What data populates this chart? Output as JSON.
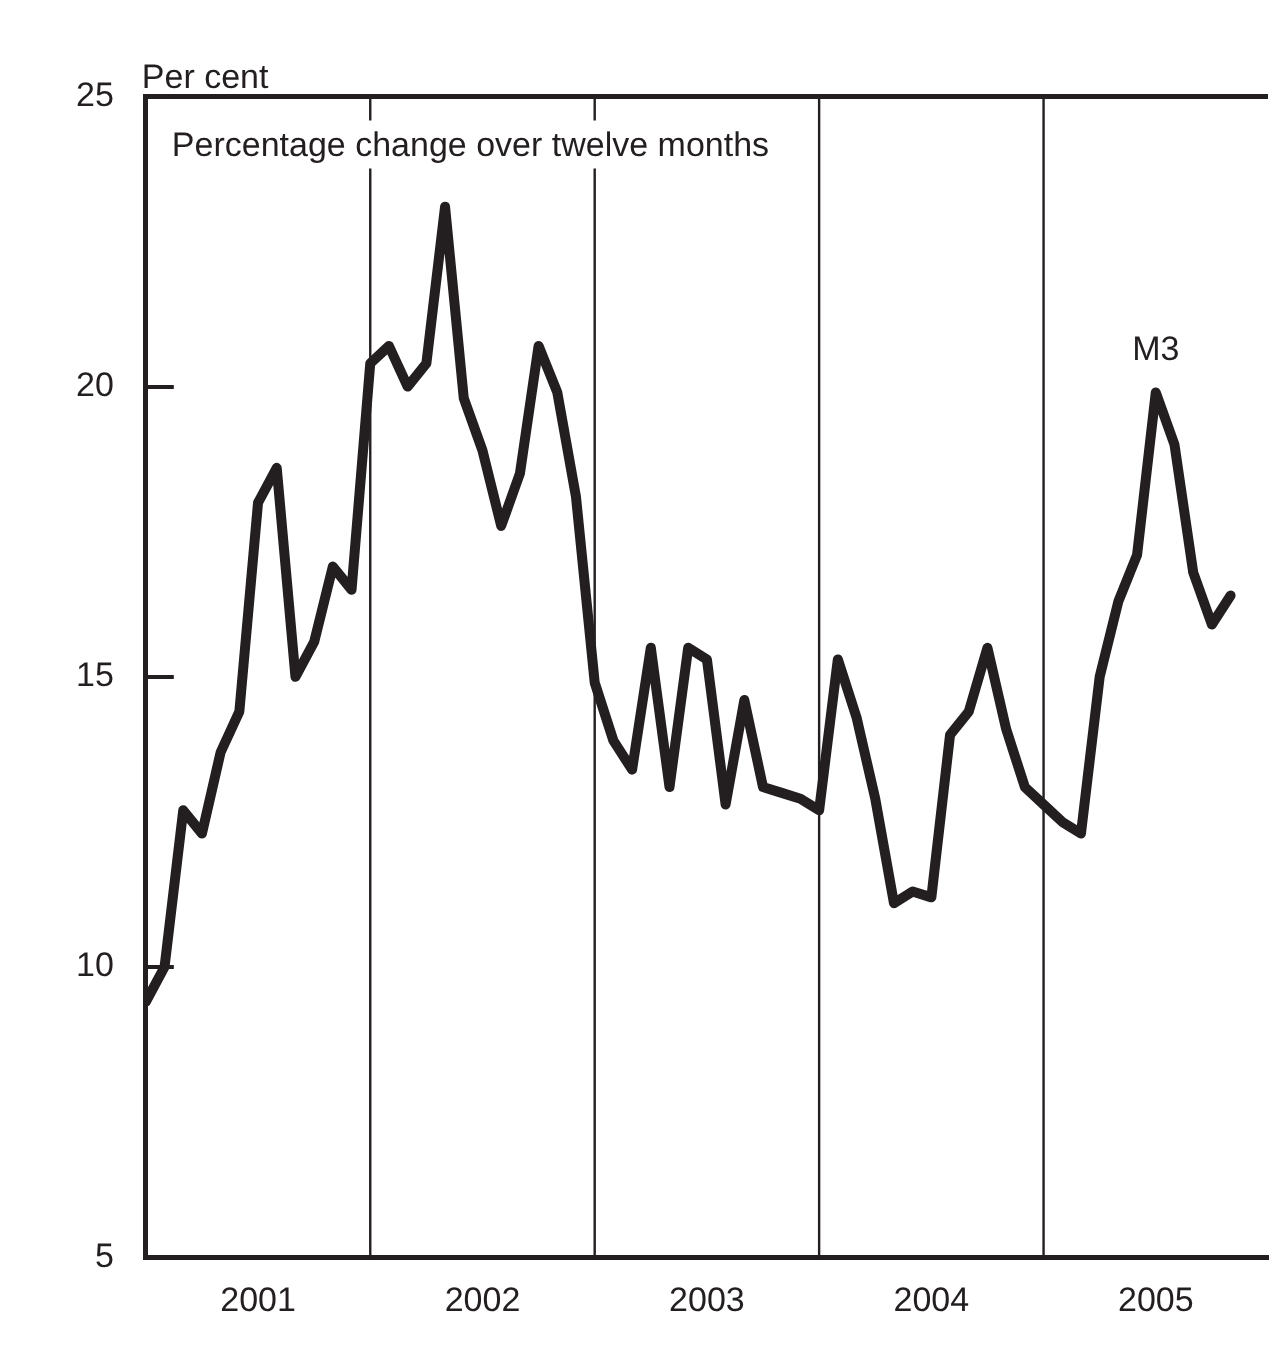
{
  "chart_data": {
    "type": "line",
    "title": "Percentage change over twelve months",
    "ylabel": "Per cent",
    "x": [
      "2001-01",
      "2001-02",
      "2001-03",
      "2001-04",
      "2001-05",
      "2001-06",
      "2001-07",
      "2001-08",
      "2001-09",
      "2001-10",
      "2001-11",
      "2001-12",
      "2002-01",
      "2002-02",
      "2002-03",
      "2002-04",
      "2002-05",
      "2002-06",
      "2002-07",
      "2002-08",
      "2002-09",
      "2002-10",
      "2002-11",
      "2002-12",
      "2003-01",
      "2003-02",
      "2003-03",
      "2003-04",
      "2003-05",
      "2003-06",
      "2003-07",
      "2003-08",
      "2003-09",
      "2003-10",
      "2003-11",
      "2003-12",
      "2004-01",
      "2004-02",
      "2004-03",
      "2004-04",
      "2004-05",
      "2004-06",
      "2004-07",
      "2004-08",
      "2004-09",
      "2004-10",
      "2004-11",
      "2004-12",
      "2005-01",
      "2005-02",
      "2005-03",
      "2005-04",
      "2005-05",
      "2005-06",
      "2005-07",
      "2005-08",
      "2005-09",
      "2005-10",
      "2005-11"
    ],
    "series": [
      {
        "name": "M3",
        "color": "#231f20",
        "values": [
          9.4,
          10.0,
          12.7,
          12.3,
          13.7,
          14.4,
          18.0,
          18.6,
          15.0,
          15.6,
          16.9,
          16.5,
          20.4,
          20.7,
          20.0,
          20.4,
          23.1,
          19.8,
          18.9,
          17.6,
          18.5,
          20.7,
          19.9,
          18.1,
          14.9,
          13.9,
          13.4,
          15.5,
          13.1,
          15.5,
          15.3,
          12.8,
          14.6,
          13.1,
          13.0,
          12.9,
          12.7,
          15.3,
          14.3,
          12.9,
          11.1,
          11.3,
          11.2,
          14.0,
          14.4,
          15.5,
          14.1,
          13.1,
          12.8,
          12.5,
          12.3,
          15.0,
          16.3,
          17.1,
          19.9,
          19.0,
          16.8,
          15.9,
          16.4
        ]
      }
    ],
    "xlim": [
      "2001-01",
      "2006-01"
    ],
    "xticks": [
      {
        "value": "2001-07",
        "label": "2001"
      },
      {
        "value": "2002-07",
        "label": "2002"
      },
      {
        "value": "2003-07",
        "label": "2003"
      },
      {
        "value": "2004-07",
        "label": "2004"
      },
      {
        "value": "2005-07",
        "label": "2005"
      }
    ],
    "ylim": [
      5,
      25
    ],
    "yticks": [
      5,
      10,
      15,
      20,
      25
    ],
    "ref_lines": [
      {
        "axis": "x",
        "value": "2002-01",
        "color": "#231f20"
      },
      {
        "axis": "x",
        "value": "2003-01",
        "color": "#231f20"
      },
      {
        "axis": "x",
        "value": "2004-01",
        "color": "#231f20"
      },
      {
        "axis": "x",
        "value": "2005-01",
        "color": "#231f20"
      }
    ],
    "grid": false,
    "legend": false,
    "marker": "none",
    "line_style": "solid"
  }
}
